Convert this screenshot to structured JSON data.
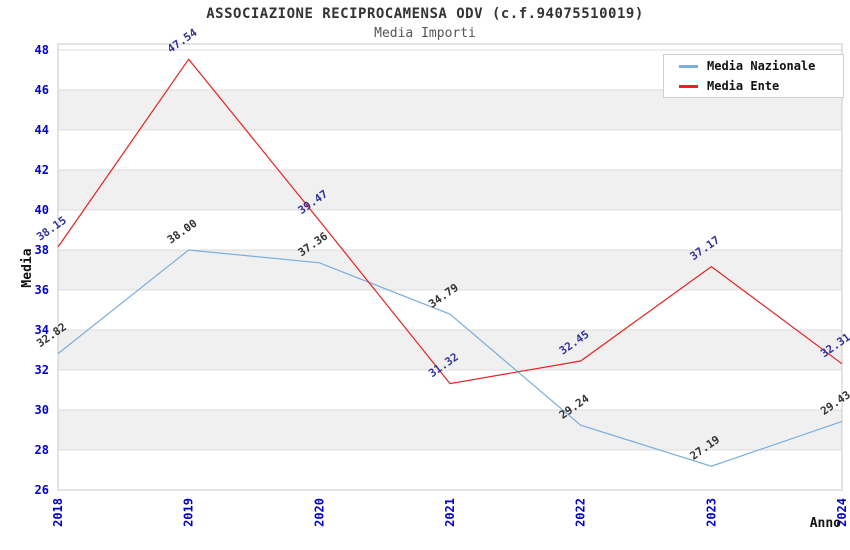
{
  "title": "ASSOCIAZIONE RECIPROCAMENSA ODV (c.f.94075510019)",
  "subtitle": "Media Importi",
  "chart_data": {
    "type": "line",
    "x": [
      2018,
      2019,
      2020,
      2021,
      2022,
      2023,
      2024
    ],
    "series": [
      {
        "name": "Media Nazionale",
        "color": "#7aafdf",
        "label_color": "#333333",
        "values": [
          32.82,
          38.0,
          37.36,
          34.79,
          29.24,
          27.19,
          29.43
        ]
      },
      {
        "name": "Media Ente",
        "color": "#e62222",
        "label_color": "#333399",
        "values": [
          38.15,
          47.54,
          39.47,
          31.32,
          32.45,
          37.17,
          32.31
        ]
      }
    ],
    "xlabel": "Anno",
    "ylabel": "Media",
    "ylim": [
      26,
      48
    ],
    "ytick_step": 2,
    "yticks": [
      26,
      28,
      30,
      32,
      34,
      36,
      38,
      40,
      42,
      44,
      46,
      48
    ],
    "grid": true,
    "legend_position": "top-right",
    "tick_label_color": "#0000cc",
    "band_color": "#f0f0f0",
    "grid_color": "#dcdcdc",
    "frame_color": "#c9c9c9"
  }
}
